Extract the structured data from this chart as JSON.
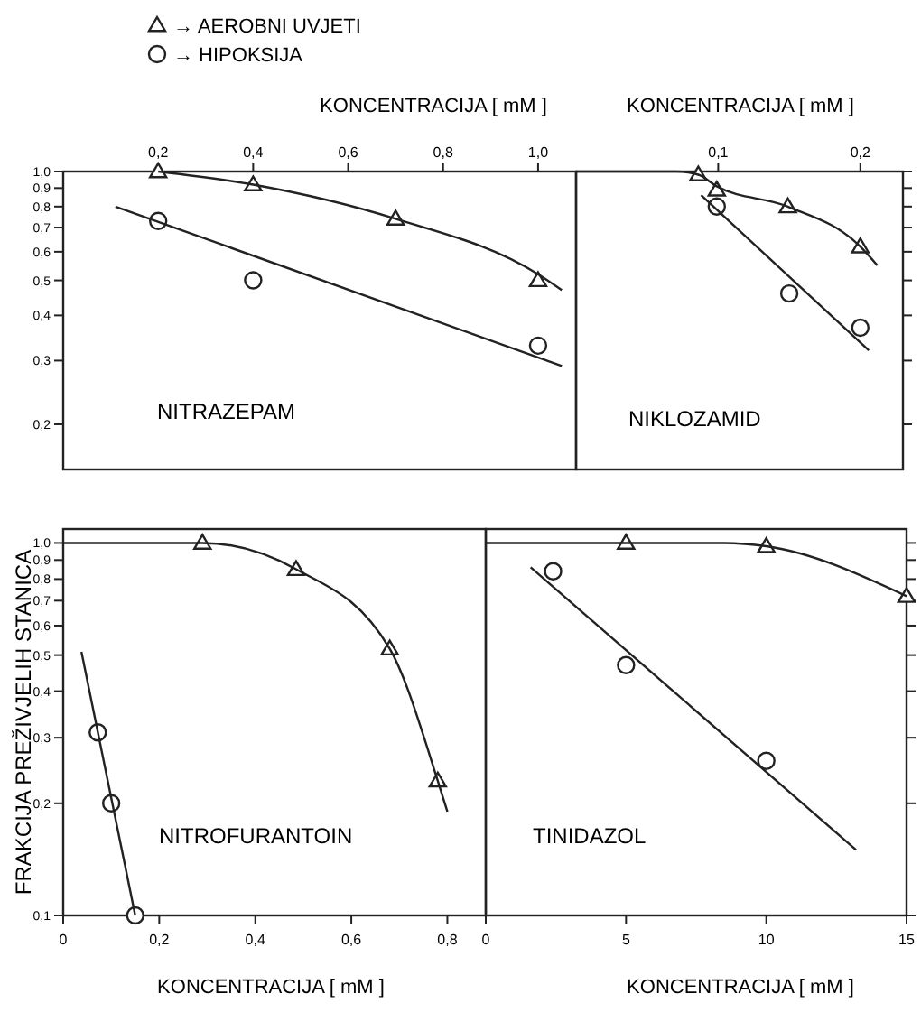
{
  "chart_data": [
    {
      "type": "scatter",
      "title": "NITRAZEPAM",
      "xlabel": "KONCENTRACIJA [ mM ]",
      "log": true,
      "legend": "top left",
      "xlim": [
        0,
        1.08
      ],
      "xticks": [
        {
          "value": 0.2,
          "label": "0,2"
        },
        {
          "value": 0.4,
          "label": "0,4"
        },
        {
          "value": 0.6,
          "label": "0,6"
        },
        {
          "value": 0.8,
          "label": "0,8"
        },
        {
          "value": 1.0,
          "label": "1,0"
        }
      ],
      "ylim": [
        0.15,
        1.0
      ],
      "yticks": [
        {
          "value": 0.2,
          "label": "0,2"
        },
        {
          "value": 0.3,
          "label": "0,3"
        },
        {
          "value": 0.4,
          "label": "0,4"
        },
        {
          "value": 0.5,
          "label": "0,5"
        },
        {
          "value": 0.6,
          "label": "0,6"
        },
        {
          "value": 0.7,
          "label": "0,7"
        },
        {
          "value": 0.8,
          "label": "0,8"
        },
        {
          "value": 0.9,
          "label": "0,9"
        },
        {
          "value": 1.0,
          "label": "1,0"
        }
      ],
      "series": [
        {
          "name": "→ AEROBNI UVJETI",
          "type": "scatter",
          "marker": "triangle",
          "color": "#222222",
          "x": [
            0.2,
            0.4,
            0.7,
            1.0
          ],
          "values": [
            1.0,
            0.92,
            0.74,
            0.5
          ]
        },
        {
          "name": "→ HIPOKSIJA",
          "type": "scatter",
          "marker": "circle",
          "color": "#222222",
          "x": [
            0.2,
            0.4,
            1.0
          ],
          "values": [
            0.73,
            0.5,
            0.33
          ]
        },
        {
          "type": "line",
          "marker": "none",
          "color": "#222222",
          "x": [
            0.2,
            0.4,
            0.7,
            1.0,
            1.05
          ],
          "values": [
            1.0,
            0.92,
            0.74,
            0.52,
            0.47
          ]
        },
        {
          "type": "line",
          "marker": "none",
          "color": "#222222",
          "x": [
            0.11,
            1.05
          ],
          "values": [
            0.8,
            0.29
          ]
        }
      ]
    },
    {
      "type": "scatter",
      "title": "NIKLOZAMID",
      "xlabel": "KONCENTRACIJA [ mM ]",
      "log": true,
      "tick_labels": "x",
      "xlim": [
        0,
        0.23
      ],
      "xticks": [
        {
          "value": 0.1,
          "label": "0,1"
        },
        {
          "value": 0.2,
          "label": "0,2"
        }
      ],
      "ylim": [
        0.15,
        1.0
      ],
      "yticks": [
        0.2,
        0.3,
        0.4,
        0.5,
        0.6,
        0.7,
        0.8,
        0.9,
        1.0
      ],
      "series": [
        {
          "type": "scatter",
          "marker": "triangle",
          "color": "#222222",
          "x": [
            0.086,
            0.099,
            0.149,
            0.2
          ],
          "values": [
            0.98,
            0.89,
            0.8,
            0.62
          ]
        },
        {
          "type": "scatter",
          "marker": "circle",
          "color": "#222222",
          "x": [
            0.099,
            0.15,
            0.2
          ],
          "values": [
            0.8,
            0.46,
            0.37
          ]
        },
        {
          "type": "line",
          "marker": "none",
          "color": "#222222",
          "x": [
            0,
            0.07,
            0.086,
            0.099,
            0.149,
            0.2,
            0.212
          ],
          "values": [
            1.0,
            1.0,
            0.98,
            0.91,
            0.8,
            0.62,
            0.55
          ]
        },
        {
          "type": "line",
          "marker": "none",
          "color": "#222222",
          "x": [
            0.088,
            0.206
          ],
          "values": [
            0.86,
            0.32
          ]
        }
      ]
    },
    {
      "type": "scatter",
      "title": "NITROFURANTOIN",
      "xlabel": "KONCENTRACIJA [ mM ]",
      "ylabel": "FRAKCIJA PREŽIVJELIH STANICA",
      "log": true,
      "xlim": [
        0,
        0.88
      ],
      "xticks": [
        0,
        {
          "value": 0.2,
          "label": "0,2"
        },
        {
          "value": 0.4,
          "label": "0,4"
        },
        {
          "value": 0.6,
          "label": "0,6"
        },
        {
          "value": 0.8,
          "label": "0,8"
        }
      ],
      "ylim": [
        0.1,
        1.09
      ],
      "yticks": [
        {
          "value": 0.1,
          "label": "0,1"
        },
        {
          "value": 0.2,
          "label": "0,2"
        },
        {
          "value": 0.3,
          "label": "0,3"
        },
        {
          "value": 0.4,
          "label": "0,4"
        },
        {
          "value": 0.5,
          "label": "0,5"
        },
        {
          "value": 0.6,
          "label": "0,6"
        },
        {
          "value": 0.7,
          "label": "0,7"
        },
        {
          "value": 0.8,
          "label": "0,8"
        },
        {
          "value": 0.9,
          "label": "0,9"
        },
        {
          "value": 1.0,
          "label": "1,0"
        }
      ],
      "series": [
        {
          "type": "scatter",
          "marker": "triangle",
          "color": "#222222",
          "x": [
            0.29,
            0.485,
            0.68,
            0.78
          ],
          "values": [
            1.0,
            0.85,
            0.52,
            0.23
          ]
        },
        {
          "type": "scatter",
          "marker": "circle",
          "color": "#222222",
          "x": [
            0.072,
            0.1,
            0.15
          ],
          "values": [
            0.31,
            0.2,
            0.1
          ]
        },
        {
          "type": "line",
          "marker": "none",
          "color": "#222222",
          "x": [
            0,
            0.29,
            0.485,
            0.68,
            0.78,
            0.8
          ],
          "values": [
            1.0,
            1.0,
            0.85,
            0.52,
            0.23,
            0.19
          ]
        },
        {
          "type": "line",
          "marker": "none",
          "color": "#222222",
          "x": [
            0.038,
            0.15
          ],
          "values": [
            0.51,
            0.1
          ]
        }
      ]
    },
    {
      "type": "scatter",
      "title": "TINIDAZOL",
      "xlabel": "KONCENTRACIJA [ mM ]",
      "log": true,
      "tick_labels": "x",
      "xlim": [
        0,
        15
      ],
      "xticks": [
        0,
        5,
        10,
        15
      ],
      "ylim": [
        0.1,
        1.09
      ],
      "yticks": [
        0.1,
        0.2,
        0.3,
        0.4,
        0.5,
        0.6,
        0.7,
        0.8,
        0.9,
        1.0
      ],
      "series": [
        {
          "type": "scatter",
          "marker": "triangle",
          "color": "#222222",
          "x": [
            5,
            10,
            15
          ],
          "values": [
            1.0,
            0.98,
            0.72
          ]
        },
        {
          "type": "scatter",
          "marker": "circle",
          "color": "#222222",
          "x": [
            2.4,
            5,
            10
          ],
          "values": [
            0.84,
            0.47,
            0.26
          ]
        },
        {
          "type": "line",
          "marker": "none",
          "color": "#222222",
          "x": [
            0,
            8.5,
            10,
            15
          ],
          "values": [
            1.0,
            1.0,
            0.98,
            0.72
          ]
        },
        {
          "type": "line",
          "marker": "none",
          "color": "#222222",
          "x": [
            1.6,
            13.2
          ],
          "values": [
            0.86,
            0.15
          ]
        }
      ]
    }
  ]
}
